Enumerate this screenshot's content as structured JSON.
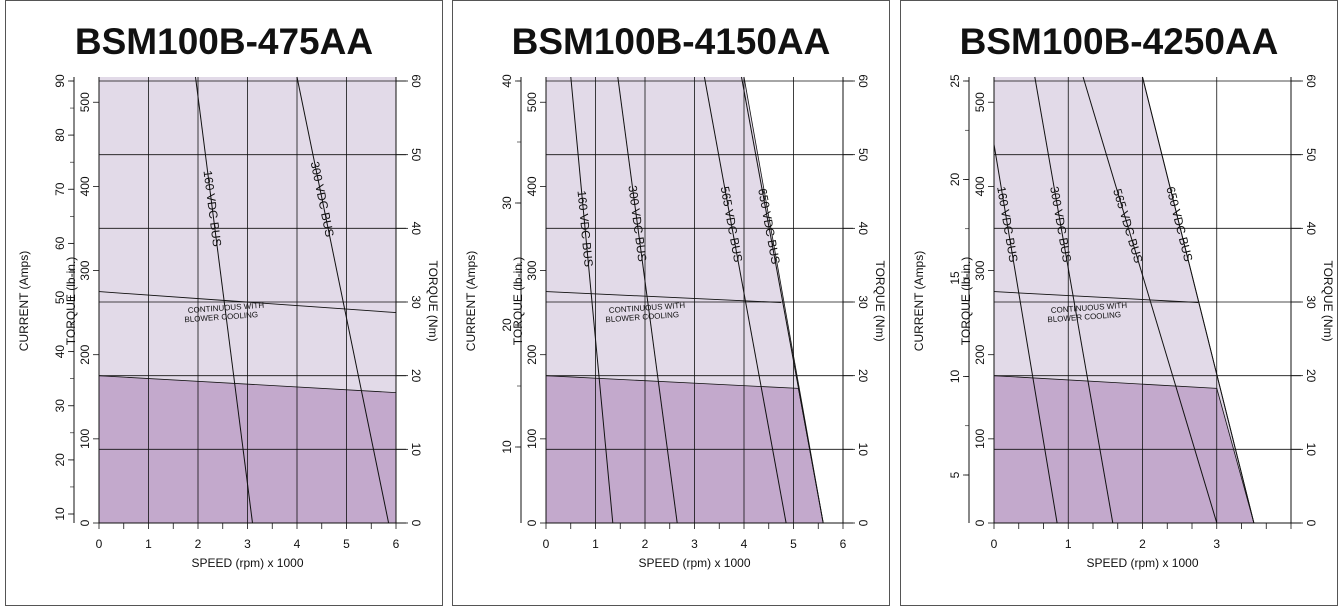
{
  "chart_data": [
    {
      "type": "line",
      "title": "BSM100B-475AA",
      "xlabel": "SPEED (rpm) x 1000",
      "ylabel_torque_lbin": "TORQUE (lb-in.)",
      "ylabel_current": "CURRENT (Amps)",
      "ylabel_torque_nm": "TORQUE (Nm)",
      "xlim": [
        0,
        6
      ],
      "x_ticks": [
        0,
        1,
        2,
        3,
        4,
        5,
        6
      ],
      "ylim_torque_lbin": [
        0,
        530
      ],
      "torque_lbin_ticks": [
        0,
        100,
        200,
        300,
        400,
        500
      ],
      "current_ticks": [
        10,
        20,
        30,
        40,
        50,
        60,
        70,
        80,
        90
      ],
      "torque_nm_ticks": [
        0,
        10,
        20,
        30,
        40,
        50,
        60
      ],
      "colors": {
        "intermittent": "#e2dae8",
        "continuous": "#c3a9cc"
      },
      "continuous_area": [
        {
          "x": 0,
          "y": 175
        },
        {
          "x": 6,
          "y": 155
        }
      ],
      "intermittent_area": [
        {
          "x": 0,
          "y": 530
        },
        {
          "x": 6,
          "y": 530
        }
      ],
      "series": [
        {
          "name": "160 VDC BUS",
          "points": [
            {
              "x": 1.95,
              "y": 530
            },
            {
              "x": 3.1,
              "y": 0
            }
          ]
        },
        {
          "name": "300 VDC BUS",
          "points": [
            {
              "x": 4.0,
              "y": 530
            },
            {
              "x": 5.85,
              "y": 0
            }
          ]
        }
      ],
      "continuous_line": {
        "name": "CONTINUOUS WITH BLOWER COOLING",
        "points": [
          {
            "x": 0,
            "y": 275
          },
          {
            "x": 6,
            "y": 250
          }
        ]
      }
    },
    {
      "type": "line",
      "title": "BSM100B-4150AA",
      "xlabel": "SPEED (rpm) x 1000",
      "ylabel_torque_lbin": "TORQUE (lb-in.)",
      "ylabel_current": "CURRENT (Amps)",
      "ylabel_torque_nm": "TORQUE (Nm)",
      "xlim": [
        0,
        6
      ],
      "x_ticks": [
        0,
        1,
        2,
        3,
        4,
        5,
        6
      ],
      "ylim_torque_lbin": [
        0,
        530
      ],
      "torque_lbin_ticks": [
        0,
        100,
        200,
        300,
        400,
        500
      ],
      "current_ticks": [
        10,
        20,
        30,
        40
      ],
      "torque_nm_ticks": [
        0,
        10,
        20,
        30,
        40,
        50,
        60
      ],
      "colors": {
        "intermittent": "#e2dae8",
        "continuous": "#c3a9cc"
      },
      "continuous_area": [
        {
          "x": 0,
          "y": 175
        },
        {
          "x": 5.1,
          "y": 160
        },
        {
          "x": 5.6,
          "y": 0
        }
      ],
      "intermittent_area": [
        {
          "x": 0,
          "y": 530
        },
        {
          "x": 4.0,
          "y": 530
        },
        {
          "x": 5.6,
          "y": 0
        }
      ],
      "series": [
        {
          "name": "160 VDC BUS",
          "points": [
            {
              "x": 0.5,
              "y": 530
            },
            {
              "x": 1.35,
              "y": 0
            }
          ]
        },
        {
          "name": "300 VDC BUS",
          "points": [
            {
              "x": 1.45,
              "y": 530
            },
            {
              "x": 2.65,
              "y": 0
            }
          ]
        },
        {
          "name": "565 VDC BUS",
          "points": [
            {
              "x": 3.2,
              "y": 530
            },
            {
              "x": 4.85,
              "y": 0
            }
          ]
        },
        {
          "name": "650 VDC BUS",
          "points": [
            {
              "x": 3.95,
              "y": 530
            },
            {
              "x": 5.6,
              "y": 0
            }
          ]
        }
      ],
      "continuous_line": {
        "name": "CONTINUOUS WITH BLOWER COOLING",
        "points": [
          {
            "x": 0,
            "y": 275
          },
          {
            "x": 4.75,
            "y": 262
          }
        ]
      }
    },
    {
      "type": "line",
      "title": "BSM100B-4250AA",
      "xlabel": "SPEED (rpm) x 1000",
      "ylabel_torque_lbin": "TORQUE (lb-in.)",
      "ylabel_current": "CURRENT (Amps)",
      "ylabel_torque_nm": "TORQUE (Nm)",
      "xlim": [
        0,
        4
      ],
      "x_ticks": [
        0,
        1,
        2,
        3
      ],
      "ylim_torque_lbin": [
        0,
        530
      ],
      "torque_lbin_ticks": [
        0,
        100,
        200,
        300,
        400,
        500
      ],
      "current_ticks": [
        5,
        10,
        15,
        20,
        25
      ],
      "torque_nm_ticks": [
        0,
        10,
        20,
        30,
        40,
        50,
        60
      ],
      "colors": {
        "intermittent": "#e2dae8",
        "continuous": "#c3a9cc"
      },
      "continuous_area": [
        {
          "x": 0,
          "y": 175
        },
        {
          "x": 3.0,
          "y": 160
        },
        {
          "x": 3.5,
          "y": 0
        }
      ],
      "intermittent_area": [
        {
          "x": 0,
          "y": 530
        },
        {
          "x": 2.0,
          "y": 530
        },
        {
          "x": 3.5,
          "y": 0
        }
      ],
      "series": [
        {
          "name": "160 VDC BUS",
          "points": [
            {
              "x": 0,
              "y": 450
            },
            {
              "x": 0.85,
              "y": 0
            }
          ]
        },
        {
          "name": "300 VDC BUS",
          "points": [
            {
              "x": 0.55,
              "y": 530
            },
            {
              "x": 1.6,
              "y": 0
            }
          ]
        },
        {
          "name": "565 VDC BUS",
          "points": [
            {
              "x": 1.2,
              "y": 530
            },
            {
              "x": 3.0,
              "y": 0
            }
          ]
        },
        {
          "name": "650 VDC BUS",
          "points": [
            {
              "x": 2.0,
              "y": 530
            },
            {
              "x": 3.5,
              "y": 0
            }
          ]
        }
      ],
      "continuous_line": {
        "name": "CONTINUOUS WITH BLOWER COOLING",
        "points": [
          {
            "x": 0,
            "y": 275
          },
          {
            "x": 2.75,
            "y": 262
          }
        ]
      }
    }
  ],
  "annotation_line1": "CONTINUOUS  WITH",
  "annotation_line2": "BLOWER COOLING"
}
